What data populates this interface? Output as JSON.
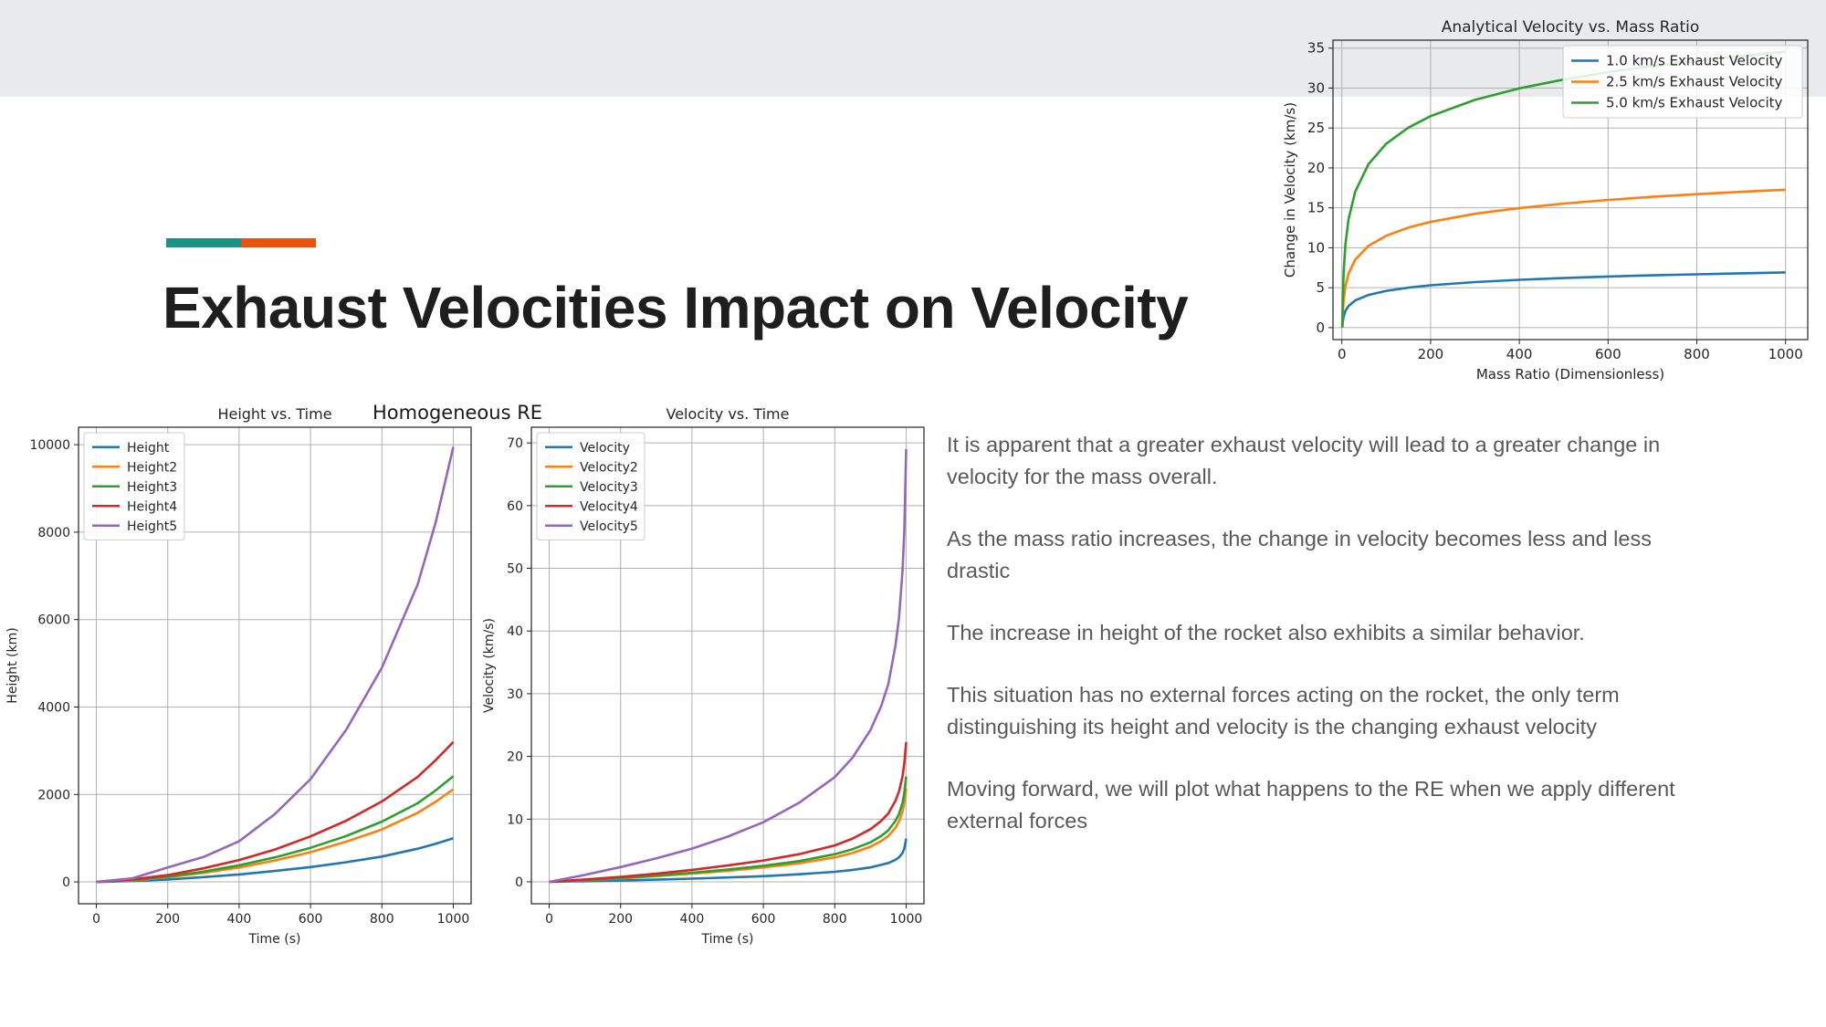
{
  "slide": {
    "title": "Exhaust Velocities Impact on Velocity",
    "accent_colors": [
      "#1a9385",
      "#e8540c"
    ],
    "notes": [
      "It is apparent that a greater exhaust velocity will lead to a greater change in velocity for the mass overall.",
      "As the mass ratio increases, the change in velocity becomes less and less drastic",
      "The increase in height of the rocket also exhibits a similar behavior.",
      "This situation has no external forces acting on the rocket, the only term distinguishing its height and velocity is the changing exhaust velocity",
      "Moving forward, we will plot  what happens to the RE when we apply different external forces"
    ],
    "suptitle": "Homogeneous RE"
  },
  "chart_data": [
    {
      "id": "mass",
      "type": "line",
      "title": "Analytical Velocity vs. Mass Ratio",
      "xlabel": "Mass Ratio (Dimensionless)",
      "ylabel": "Change in Velocity (km/s)",
      "xlim": [
        -20,
        1050
      ],
      "ylim": [
        -1.5,
        36
      ],
      "xticks": [
        0,
        200,
        400,
        600,
        800,
        1000
      ],
      "yticks": [
        0,
        5,
        10,
        15,
        20,
        25,
        30,
        35
      ],
      "grid": true,
      "legend": "top-right",
      "x": [
        1,
        2,
        4,
        8,
        15,
        30,
        60,
        100,
        150,
        200,
        300,
        400,
        500,
        600,
        700,
        800,
        900,
        1000
      ],
      "series": [
        {
          "name": "1.0 km/s Exhaust Velocity",
          "color": "#1f77b4",
          "values": [
            0,
            0.69,
            1.39,
            2.08,
            2.71,
            3.4,
            4.09,
            4.61,
            5.01,
            5.3,
            5.7,
            5.99,
            6.21,
            6.4,
            6.55,
            6.68,
            6.8,
            6.91
          ]
        },
        {
          "name": "2.5 km/s Exhaust Velocity",
          "color": "#ff7f0e",
          "values": [
            0,
            1.73,
            3.47,
            5.2,
            6.77,
            8.5,
            10.24,
            11.51,
            12.53,
            13.25,
            14.26,
            14.98,
            15.54,
            15.99,
            16.38,
            16.71,
            17.01,
            17.27
          ]
        },
        {
          "name": "5.0 km/s Exhaust Velocity",
          "color": "#2ca02c",
          "values": [
            0,
            3.47,
            6.93,
            10.4,
            13.54,
            17.01,
            20.47,
            23.03,
            25.05,
            26.49,
            28.52,
            29.96,
            31.07,
            31.98,
            32.76,
            33.42,
            34.01,
            34.54
          ]
        }
      ]
    },
    {
      "id": "height",
      "type": "line",
      "title": "Height vs. Time",
      "xlabel": "Time (s)",
      "ylabel": "Height (km)",
      "xlim": [
        -50,
        1050
      ],
      "ylim": [
        -500,
        10400
      ],
      "xticks": [
        0,
        200,
        400,
        600,
        800,
        1000
      ],
      "yticks": [
        0,
        2000,
        4000,
        6000,
        8000,
        10000
      ],
      "grid": true,
      "legend": "top-left",
      "x": [
        0,
        100,
        200,
        300,
        400,
        500,
        600,
        700,
        800,
        900,
        950,
        1000
      ],
      "series": [
        {
          "name": "Height",
          "color": "#1f77b4",
          "values": [
            0,
            20,
            55,
            110,
            170,
            250,
            340,
            450,
            580,
            760,
            870,
            1000
          ]
        },
        {
          "name": "Height2",
          "color": "#ff7f0e",
          "values": [
            0,
            35,
            105,
            205,
            330,
            490,
            680,
            920,
            1200,
            1580,
            1830,
            2120
          ]
        },
        {
          "name": "Height3",
          "color": "#2ca02c",
          "values": [
            0,
            40,
            120,
            235,
            380,
            560,
            780,
            1050,
            1380,
            1800,
            2090,
            2420
          ]
        },
        {
          "name": "Height4",
          "color": "#d62728",
          "values": [
            0,
            55,
            155,
            310,
            500,
            740,
            1040,
            1400,
            1840,
            2400,
            2780,
            3200
          ]
        },
        {
          "name": "Height5",
          "color": "#9467bd",
          "values": [
            0,
            80,
            330,
            570,
            930,
            1550,
            2350,
            3480,
            4900,
            6800,
            8200,
            9950
          ]
        }
      ]
    },
    {
      "id": "velocity",
      "type": "line",
      "title": "Velocity vs. Time",
      "xlabel": "Time (s)",
      "ylabel": "Velocity (km/s)",
      "xlim": [
        -50,
        1050
      ],
      "ylim": [
        -3.5,
        72.5
      ],
      "xticks": [
        0,
        200,
        400,
        600,
        800,
        1000
      ],
      "yticks": [
        0,
        10,
        20,
        30,
        40,
        50,
        60,
        70
      ],
      "grid": true,
      "legend": "top-left",
      "x": [
        0,
        100,
        200,
        300,
        400,
        500,
        600,
        700,
        800,
        850,
        900,
        930,
        950,
        970,
        980,
        990,
        995,
        1000
      ],
      "series": [
        {
          "name": "Velocity",
          "color": "#1f77b4",
          "values": [
            0,
            0.1,
            0.2,
            0.35,
            0.5,
            0.7,
            0.9,
            1.2,
            1.6,
            1.9,
            2.3,
            2.7,
            3.0,
            3.5,
            3.9,
            4.6,
            5.3,
            6.9
          ]
        },
        {
          "name": "Velocity2",
          "color": "#ff7f0e",
          "values": [
            0,
            0.25,
            0.55,
            0.9,
            1.3,
            1.75,
            2.3,
            2.95,
            3.9,
            4.6,
            5.6,
            6.5,
            7.3,
            8.6,
            9.6,
            11.2,
            12.6,
            14.9
          ]
        },
        {
          "name": "Velocity3",
          "color": "#2ca02c",
          "values": [
            0,
            0.28,
            0.62,
            1.0,
            1.45,
            1.95,
            2.55,
            3.3,
            4.4,
            5.2,
            6.3,
            7.3,
            8.2,
            9.7,
            10.8,
            12.6,
            14.2,
            16.8
          ]
        },
        {
          "name": "Velocity4",
          "color": "#d62728",
          "values": [
            0,
            0.37,
            0.8,
            1.3,
            1.9,
            2.6,
            3.4,
            4.4,
            5.8,
            6.9,
            8.4,
            9.7,
            10.9,
            12.9,
            14.4,
            16.8,
            18.9,
            22.3
          ]
        },
        {
          "name": "Velocity5",
          "color": "#9467bd",
          "values": [
            0,
            1.1,
            2.35,
            3.75,
            5.3,
            7.2,
            9.5,
            12.6,
            16.7,
            19.8,
            24.2,
            28.0,
            31.5,
            37.6,
            42.0,
            49.5,
            56.0,
            69.0
          ]
        }
      ]
    }
  ]
}
